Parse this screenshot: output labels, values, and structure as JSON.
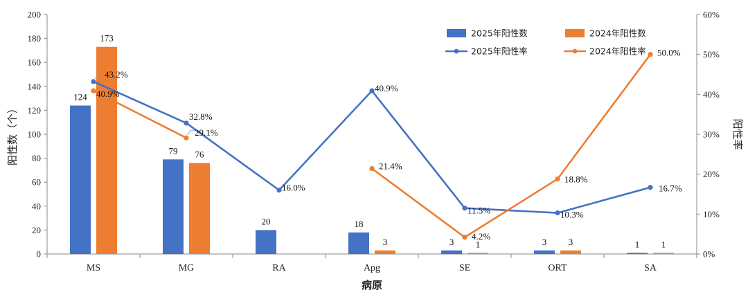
{
  "chart_data": {
    "type": "bar+line",
    "categories": [
      "MS",
      "MG",
      "RA",
      "Apg",
      "SE",
      "ORT",
      "SA"
    ],
    "xlabel": "病原",
    "ylabel": "阳性数（个）",
    "ylabel_right": "阳性率",
    "ylim": [
      0,
      200
    ],
    "yticks": [
      "0",
      "20",
      "40",
      "60",
      "80",
      "100",
      "120",
      "140",
      "160",
      "180",
      "200"
    ],
    "ylim_right": [
      0,
      60
    ],
    "yticks_right": [
      "0%",
      "10%",
      "20%",
      "30%",
      "40%",
      "50%",
      "60%"
    ],
    "bar_series": [
      {
        "name": "2025年阳性数",
        "color": "#4472C4",
        "values": [
          124,
          79,
          20,
          18,
          3,
          3,
          1
        ]
      },
      {
        "name": "2024年阳性数",
        "color": "#ED7D31",
        "values": [
          173,
          76,
          null,
          3,
          1,
          3,
          1
        ]
      }
    ],
    "line_series": [
      {
        "name": "2025年阳性率",
        "color": "#4472C4",
        "values": [
          43.2,
          32.8,
          16.0,
          40.9,
          11.5,
          10.3,
          16.7
        ],
        "labels": [
          "43.2%",
          "32.8%",
          "16.0%",
          "40.9%",
          "11.5%",
          "10.3%",
          "16.7%"
        ]
      },
      {
        "name": "2024年阳性率",
        "color": "#ED7D31",
        "values": [
          40.9,
          29.1,
          null,
          21.4,
          4.2,
          18.8,
          50.0
        ],
        "labels": [
          "40.9%",
          "29.1%",
          null,
          "21.4%",
          "4.2%",
          "18.8%",
          "50.0%"
        ]
      }
    ],
    "legend_position": "top-right",
    "grid": false
  }
}
